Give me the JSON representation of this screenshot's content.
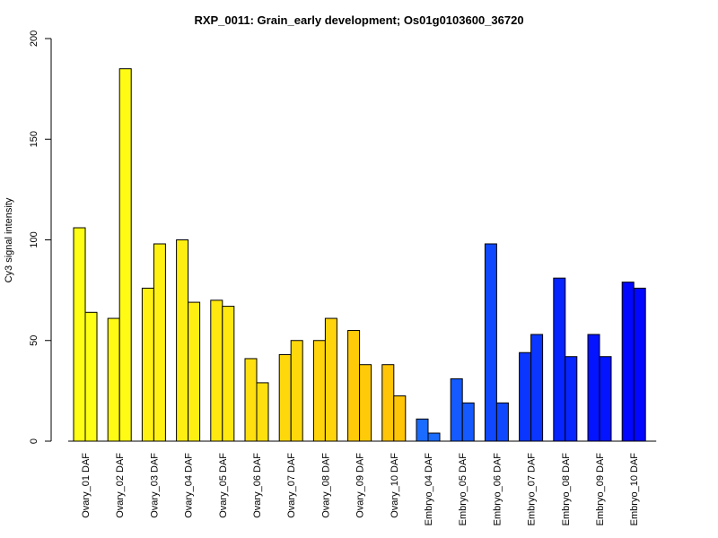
{
  "chart_data": {
    "type": "bar",
    "title": "RXP_0011: Grain_early development; Os01g0103600_36720",
    "ylabel": "Cy3 signal intensity",
    "xlabel": "",
    "ylim": [
      0,
      200
    ],
    "yticks": [
      0,
      50,
      100,
      150,
      200
    ],
    "grid": false,
    "legend": "none",
    "categories": [
      "Ovary_01 DAF",
      "Ovary_02 DAF",
      "Ovary_03 DAF",
      "Ovary_04 DAF",
      "Ovary_05 DAF",
      "Ovary_06 DAF",
      "Ovary_07 DAF",
      "Ovary_08 DAF",
      "Ovary_09 DAF",
      "Ovary_10 DAF",
      "Embryo_04 DAF",
      "Embryo_05 DAF",
      "Embryo_06 DAF",
      "Embryo_07 DAF",
      "Embryo_08 DAF",
      "Embryo_09 DAF",
      "Embryo_10 DAF"
    ],
    "colors": [
      "#ffff16",
      "#fffb14",
      "#fff112",
      "#ffee12",
      "#ffe710",
      "#ffe00e",
      "#ffd80c",
      "#ffd40b",
      "#ffcb08",
      "#ffc506",
      "#1a6bff",
      "#145aff",
      "#0f48ff",
      "#0a36ff",
      "#0625ff",
      "#0414ff",
      "#0208ff"
    ],
    "series": [
      {
        "values": [
          106,
          61,
          76,
          100,
          70,
          41,
          43,
          50,
          55,
          38,
          11,
          31,
          98,
          44,
          81,
          53,
          79
        ]
      },
      {
        "values": [
          64,
          185,
          98,
          69,
          67,
          29,
          50,
          61,
          38,
          22.5,
          4,
          19,
          19,
          53,
          42,
          42,
          76
        ]
      }
    ]
  }
}
